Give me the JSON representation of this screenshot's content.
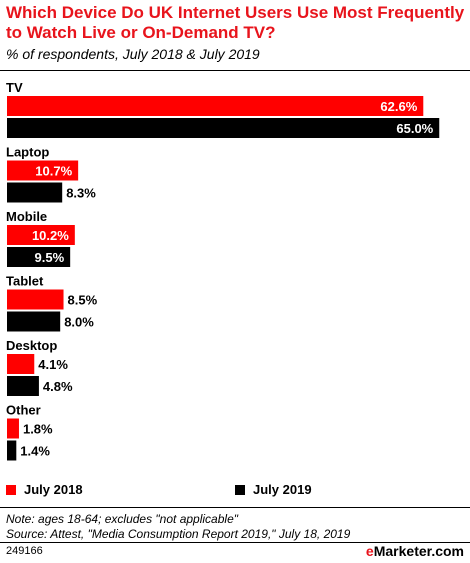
{
  "title": "Which Device Do UK Internet Users Use Most Frequently to Watch Live or On-Demand TV?",
  "subtitle": "% of respondents, July 2018 & July 2019",
  "legend": {
    "series1": "July 2018",
    "series2": "July 2019"
  },
  "note": "Note: ages 18-64; excludes \"not applicable\"",
  "source": "Source: Attest, \"Media Consumption Report 2019,\" July 18, 2019",
  "chart_id": "249166",
  "brand": {
    "prefix": "e",
    "name": "Marketer",
    "suffix": ".com"
  },
  "colors": {
    "series1": "#ff0000",
    "series2": "#000000",
    "title": "#e8141c"
  },
  "chart_data": {
    "type": "bar",
    "orientation": "horizontal",
    "categories": [
      "TV",
      "Laptop",
      "Mobile",
      "Tablet",
      "Desktop",
      "Other"
    ],
    "series": [
      {
        "name": "July 2018",
        "values": [
          62.6,
          10.7,
          10.2,
          8.5,
          4.1,
          1.8
        ]
      },
      {
        "name": "July 2019",
        "values": [
          65.0,
          8.3,
          9.5,
          8.0,
          4.8,
          1.4
        ]
      }
    ],
    "value_suffix": "%",
    "title": "Which Device Do UK Internet Users Use Most Frequently to Watch Live or On-Demand TV?",
    "subtitle": "% of respondents, July 2018 & July 2019",
    "legend_position": "bottom",
    "grid": false
  }
}
